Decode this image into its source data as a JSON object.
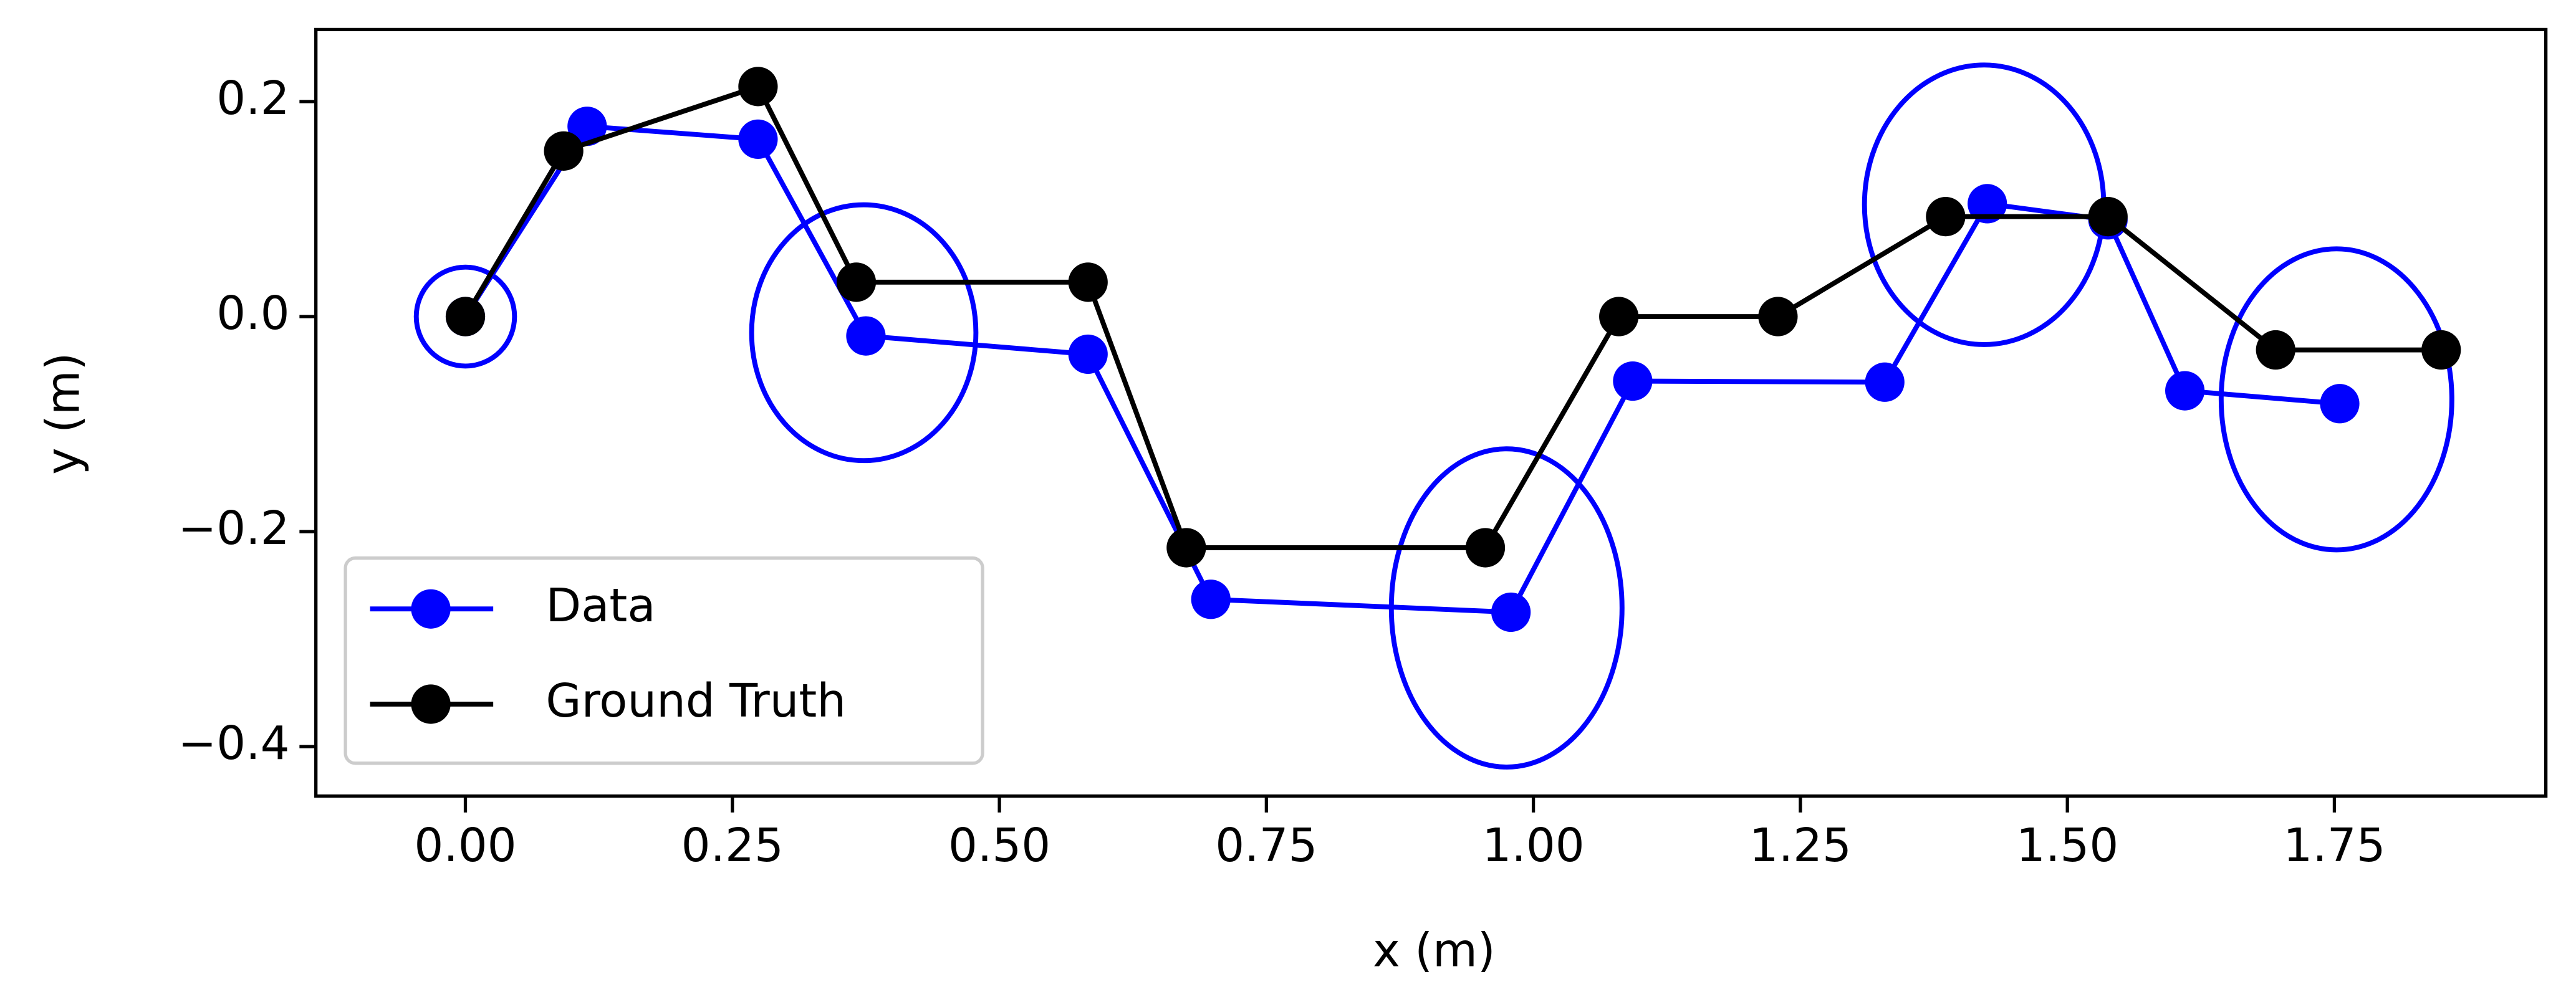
{
  "chart_data": {
    "type": "line",
    "xlabel": "x (m)",
    "ylabel": "y (m)",
    "xlim": [
      -0.14,
      1.948
    ],
    "ylim": [
      -0.446,
      0.267
    ],
    "xticks": [
      {
        "value": 0,
        "label": "0.00"
      },
      {
        "value": 0.25,
        "label": "0.25"
      },
      {
        "value": 0.5,
        "label": "0.50"
      },
      {
        "value": 0.75,
        "label": "0.75"
      },
      {
        "value": 1,
        "label": "1.00"
      },
      {
        "value": 1.25,
        "label": "1.25"
      },
      {
        "value": 1.5,
        "label": "1.50"
      },
      {
        "value": 1.75,
        "label": "1.75"
      }
    ],
    "yticks": [
      {
        "value": -0.4,
        "label": "−0.4"
      },
      {
        "value": -0.2,
        "label": "−0.2"
      },
      {
        "value": 0,
        "label": "0.0"
      },
      0.2
    ],
    "legend": "lower left",
    "series": [
      {
        "name": "Data",
        "color": "#0000ff",
        "x": [
          0,
          0.114,
          0.274,
          0.375,
          0.583,
          0.698,
          0.979,
          1.093,
          1.329,
          1.425,
          1.538,
          1.61,
          1.755
        ],
        "values": [
          0,
          0.177,
          0.165,
          -0.018,
          -0.035,
          -0.263,
          -0.275,
          -0.06,
          -0.061,
          0.105,
          0.09,
          -0.069,
          -0.081
        ]
      },
      {
        "name": "Ground Truth",
        "color": "#000000",
        "x": [
          0,
          0.092,
          0.274,
          0.366,
          0.583,
          0.675,
          0.955,
          1.08,
          1.229,
          1.386,
          1.538,
          1.695,
          1.85
        ],
        "values": [
          0,
          0.154,
          0.214,
          0.032,
          0.032,
          -0.215,
          -0.215,
          0,
          0,
          0.093,
          0.093,
          -0.031,
          -0.031
        ]
      }
    ],
    "ellipses": [
      {
        "cx": 0,
        "cy": 0,
        "rx": 0.046,
        "ry": 0.046
      },
      {
        "cx": 0.373,
        "cy": -0.015,
        "rx": 0.105,
        "ry": 0.119
      },
      {
        "cx": 0.975,
        "cy": -0.271,
        "rx": 0.108,
        "ry": 0.148
      },
      {
        "cx": 1.422,
        "cy": 0.104,
        "rx": 0.112,
        "ry": 0.13
      },
      {
        "cx": 1.752,
        "cy": -0.077,
        "rx": 0.108,
        "ry": 0.14
      }
    ],
    "ellipse_color": "#0000ff"
  }
}
